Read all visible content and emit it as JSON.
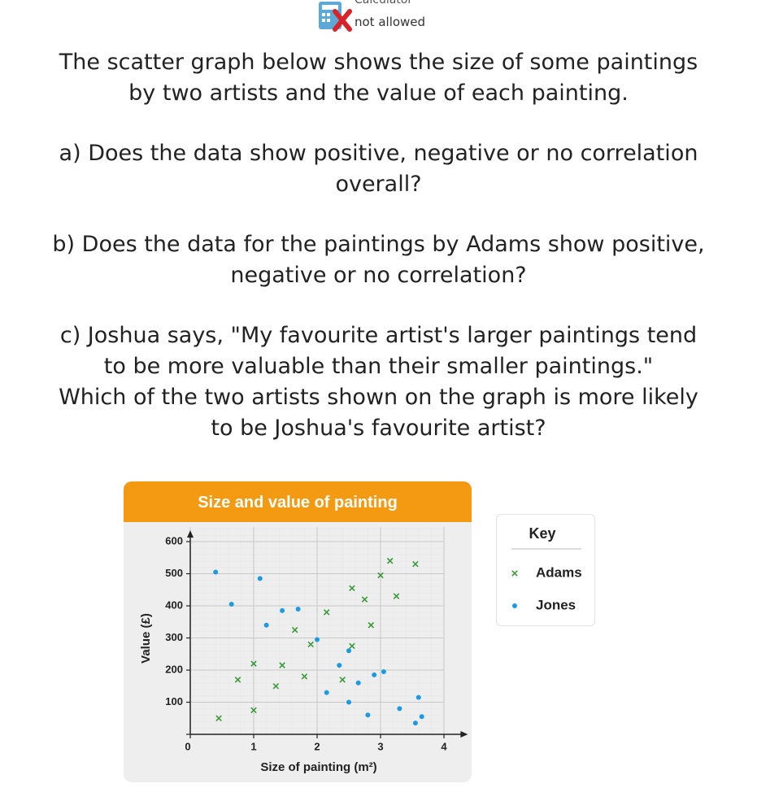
{
  "badge": {
    "line1": "Calculator",
    "line2": "not allowed"
  },
  "questions": [
    [
      "The scatter graph below shows the size of some paintings",
      "by two artists and the value of each painting."
    ],
    [
      "a) Does the data show positive, negative or no correlation",
      "overall?"
    ],
    [
      "b) Does the data for the paintings by Adams show positive,",
      "negative or no correlation?"
    ],
    [
      "c) Joshua says, \"My favourite artist's larger paintings tend",
      "to be more valuable than their smaller paintings.\"",
      "Which of the two artists shown on the graph is more likely",
      "to be Joshua's favourite artist?"
    ]
  ],
  "chart_data": {
    "type": "scatter",
    "title": "Size and value of painting",
    "x_label": "Size of painting (m²)",
    "y_label": "Value (£)",
    "legend_title": "Key",
    "xlim": [
      0,
      4.3
    ],
    "ylim": [
      0,
      620
    ],
    "xticks": [
      0,
      1,
      2,
      3,
      4
    ],
    "yticks": [
      0,
      100,
      200,
      300,
      400,
      500,
      600
    ],
    "grid": true,
    "series": [
      {
        "name": "Adams",
        "marker": "cross",
        "color": "#3a9a3a",
        "x": [
          0.45,
          1.0,
          0.75,
          1.35,
          1.0,
          1.45,
          1.8,
          2.4,
          1.9,
          1.65,
          2.15,
          2.55,
          2.85,
          2.75,
          2.55,
          3.25,
          3.0,
          3.15,
          3.55
        ],
        "values": [
          50,
          75,
          170,
          150,
          220,
          215,
          180,
          170,
          280,
          325,
          380,
          275,
          340,
          420,
          455,
          430,
          495,
          540,
          530
        ]
      },
      {
        "name": "Jones",
        "marker": "dot",
        "color": "#1e9be0",
        "x": [
          0.4,
          1.1,
          0.65,
          1.45,
          1.7,
          1.2,
          2.0,
          2.5,
          2.35,
          2.65,
          2.15,
          2.9,
          3.05,
          2.5,
          2.8,
          3.3,
          3.6,
          3.65,
          3.55
        ],
        "values": [
          505,
          485,
          405,
          385,
          390,
          340,
          295,
          260,
          215,
          160,
          130,
          185,
          195,
          100,
          60,
          80,
          115,
          55,
          35
        ]
      }
    ]
  }
}
